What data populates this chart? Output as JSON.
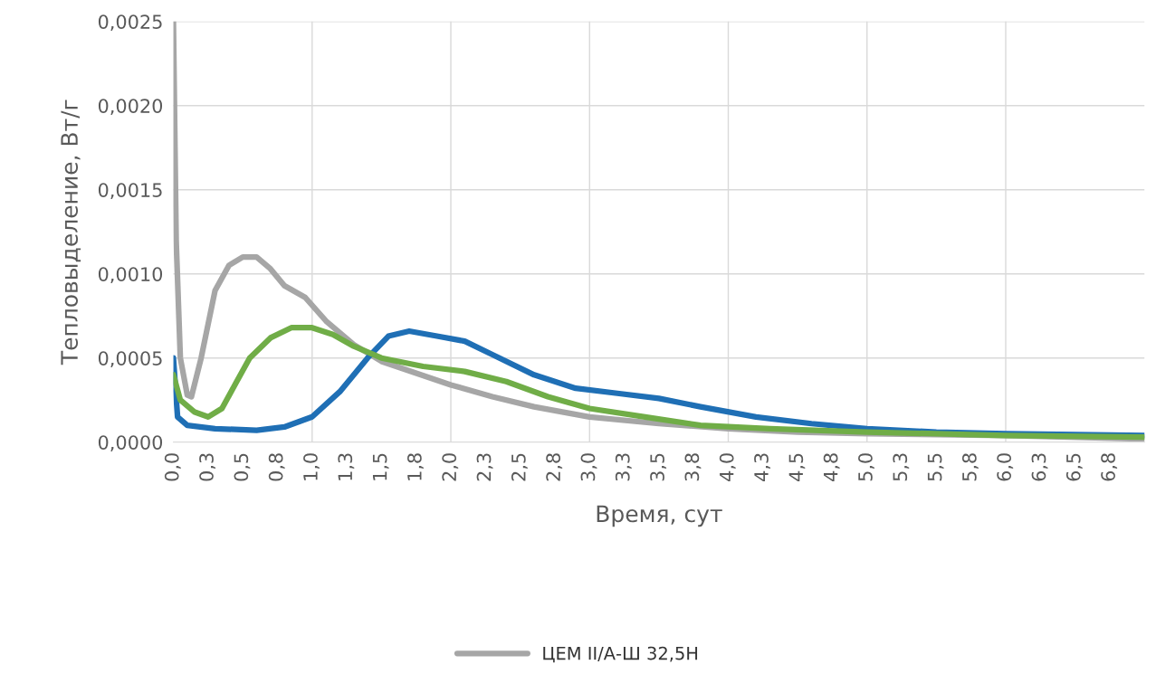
{
  "chart_data": {
    "type": "line",
    "xlabel": "Время, сут",
    "ylabel": "Тепловыделение, Вт/г",
    "xlim": [
      0,
      7
    ],
    "ylim": [
      0,
      0.0025
    ],
    "xticks": [
      {
        "value": 0,
        "label": "0,0"
      },
      {
        "value": 0.25,
        "label": "0,3"
      },
      {
        "value": 0.5,
        "label": "0,5"
      },
      {
        "value": 0.75,
        "label": "0,8"
      },
      {
        "value": 1,
        "label": "1,0"
      },
      {
        "value": 1.25,
        "label": "1,3"
      },
      {
        "value": 1.5,
        "label": "1,5"
      },
      {
        "value": 1.75,
        "label": "1,8"
      },
      {
        "value": 2,
        "label": "2,0"
      },
      {
        "value": 2.25,
        "label": "2,3"
      },
      {
        "value": 2.5,
        "label": "2,5"
      },
      {
        "value": 2.75,
        "label": "2,8"
      },
      {
        "value": 3,
        "label": "3,0"
      },
      {
        "value": 3.25,
        "label": "3,3"
      },
      {
        "value": 3.5,
        "label": "3,5"
      },
      {
        "value": 3.75,
        "label": "3,8"
      },
      {
        "value": 4,
        "label": "4,0"
      },
      {
        "value": 4.25,
        "label": "4,3"
      },
      {
        "value": 4.5,
        "label": "4,5"
      },
      {
        "value": 4.75,
        "label": "4,8"
      },
      {
        "value": 5,
        "label": "5,0"
      },
      {
        "value": 5.25,
        "label": "5,3"
      },
      {
        "value": 5.5,
        "label": "5,5"
      },
      {
        "value": 5.75,
        "label": "5,8"
      },
      {
        "value": 6,
        "label": "6,0"
      },
      {
        "value": 6.25,
        "label": "6,3"
      },
      {
        "value": 6.5,
        "label": "6,5"
      },
      {
        "value": 6.75,
        "label": "6,8"
      }
    ],
    "yticks": [
      {
        "value": 0,
        "label": "0,0000"
      },
      {
        "value": 0.0005,
        "label": "0,0005"
      },
      {
        "value": 0.001,
        "label": "0,0010"
      },
      {
        "value": 0.0015,
        "label": "0,0015"
      },
      {
        "value": 0.002,
        "label": "0,0020"
      },
      {
        "value": 0.0025,
        "label": "0,0025"
      }
    ],
    "grid": true,
    "legend": "bottom",
    "marker": "none",
    "line_style": "solid",
    "series": [
      {
        "name": "ЦЕМ II/А-Ш 32,5Н",
        "color": "#a6a6a6",
        "x": [
          0,
          0.02,
          0.05,
          0.1,
          0.13,
          0.2,
          0.3,
          0.4,
          0.5,
          0.6,
          0.7,
          0.8,
          0.95,
          1.1,
          1.3,
          1.5,
          1.75,
          2.0,
          2.3,
          2.6,
          3.0,
          3.5,
          4.0,
          4.5,
          5.0,
          6.0,
          6.9,
          7.0
        ],
        "values": [
          0.0025,
          0.0012,
          0.0005,
          0.00028,
          0.00027,
          0.0005,
          0.0009,
          0.00105,
          0.0011,
          0.0011,
          0.00103,
          0.00093,
          0.00086,
          0.00072,
          0.00058,
          0.00048,
          0.00041,
          0.00034,
          0.00027,
          0.00021,
          0.00015,
          0.00011,
          8e-05,
          6e-05,
          5e-05,
          4e-05,
          2e-05,
          2e-05
        ]
      },
      {
        "color": "#1f6fb5",
        "x": [
          0,
          0.03,
          0.1,
          0.3,
          0.6,
          0.8,
          1.0,
          1.2,
          1.4,
          1.55,
          1.7,
          1.9,
          2.1,
          2.3,
          2.6,
          2.9,
          3.2,
          3.5,
          3.8,
          4.2,
          4.6,
          5.0,
          5.5,
          6.0,
          7.0
        ],
        "values": [
          0.0005,
          0.00015,
          0.0001,
          8e-05,
          7e-05,
          9e-05,
          0.00015,
          0.0003,
          0.0005,
          0.00063,
          0.00066,
          0.00063,
          0.0006,
          0.00052,
          0.0004,
          0.00032,
          0.00029,
          0.00026,
          0.00021,
          0.00015,
          0.00011,
          8e-05,
          6e-05,
          5e-05,
          4e-05
        ]
      },
      {
        "color": "#70ad47",
        "x": [
          0,
          0.05,
          0.15,
          0.25,
          0.35,
          0.45,
          0.55,
          0.7,
          0.85,
          1.0,
          1.15,
          1.3,
          1.5,
          1.8,
          2.1,
          2.4,
          2.7,
          3.0,
          3.4,
          3.8,
          4.3,
          5.0,
          6.0,
          7.0
        ],
        "values": [
          0.0004,
          0.00025,
          0.00018,
          0.00015,
          0.0002,
          0.00035,
          0.0005,
          0.00062,
          0.00068,
          0.00068,
          0.00064,
          0.00057,
          0.0005,
          0.00045,
          0.00042,
          0.00036,
          0.00027,
          0.0002,
          0.00015,
          0.0001,
          8e-05,
          6e-05,
          4e-05,
          3e-05
        ]
      }
    ]
  }
}
